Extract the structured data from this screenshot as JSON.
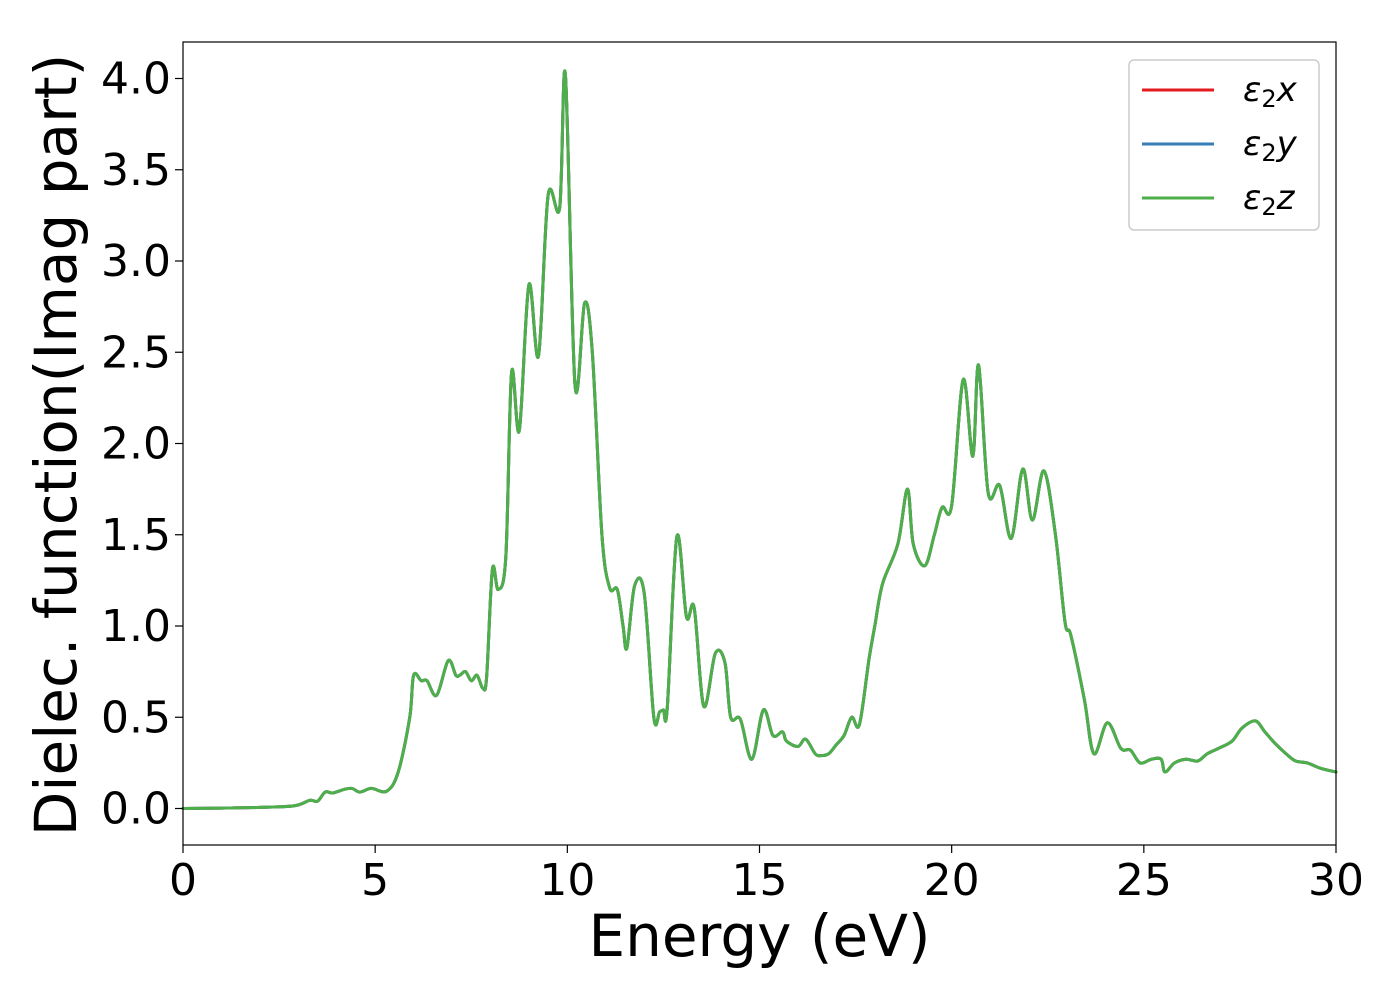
{
  "chart_data": {
    "type": "line",
    "title": "",
    "xlabel": "Energy (eV)",
    "ylabel": "Dielec. function(Imag part)",
    "xlim": [
      0,
      30
    ],
    "ylim": [
      -0.2,
      4.2
    ],
    "xticks": [
      0,
      5,
      10,
      15,
      20,
      25,
      30
    ],
    "xtick_labels": [
      "0",
      "5",
      "10",
      "15",
      "20",
      "25",
      "30"
    ],
    "yticks": [
      0.0,
      0.5,
      1.0,
      1.5,
      2.0,
      2.5,
      3.0,
      3.5,
      4.0
    ],
    "ytick_labels": [
      "0.0",
      "0.5",
      "1.0",
      "1.5",
      "2.0",
      "2.5",
      "3.0",
      "3.5",
      "4.0"
    ],
    "grid": false,
    "legend_position": "top-right",
    "series": [
      {
        "name": "ε2x",
        "base": "ε",
        "sub": "2",
        "var": "x",
        "color": "#e41a1c",
        "shares_data_with": "ε2z"
      },
      {
        "name": "ε2y",
        "base": "ε",
        "sub": "2",
        "var": "y",
        "color": "#377eb8",
        "shares_data_with": "ε2z"
      },
      {
        "name": "ε2z",
        "base": "ε",
        "sub": "2",
        "var": "z",
        "color": "#4daf4a"
      }
    ],
    "x": [
      0,
      1,
      2,
      2.9,
      3.3,
      3.5,
      3.7,
      3.9,
      4.2,
      4.4,
      4.6,
      4.9,
      5.3,
      5.6,
      5.9,
      6.0,
      6.2,
      6.35,
      6.6,
      6.9,
      7.1,
      7.2,
      7.35,
      7.5,
      7.65,
      7.8,
      7.9,
      8.05,
      8.2,
      8.4,
      8.55,
      8.75,
      9.0,
      9.25,
      9.5,
      9.8,
      9.95,
      10.2,
      10.45,
      10.65,
      10.9,
      11.1,
      11.3,
      11.45,
      11.55,
      11.75,
      12.0,
      12.25,
      12.4,
      12.5,
      12.6,
      12.85,
      13.1,
      13.3,
      13.55,
      13.85,
      14.1,
      14.25,
      14.5,
      14.8,
      15.1,
      15.35,
      15.6,
      15.7,
      16.0,
      16.2,
      16.45,
      16.6,
      16.8,
      17.0,
      17.2,
      17.4,
      17.6,
      17.85,
      18.0,
      18.2,
      18.6,
      18.85,
      19.0,
      19.3,
      19.55,
      19.75,
      20.0,
      20.3,
      20.55,
      20.7,
      20.95,
      21.25,
      21.55,
      21.85,
      22.1,
      22.4,
      22.7,
      22.95,
      23.1,
      23.45,
      23.7,
      24.05,
      24.4,
      24.65,
      24.9,
      25.2,
      25.45,
      25.55,
      25.8,
      26.1,
      26.4,
      26.65,
      26.95,
      27.3,
      27.55,
      27.9,
      28.15,
      28.4,
      28.7,
      28.95,
      29.25,
      29.6,
      30.0
    ],
    "values": [
      0.0,
      0.002,
      0.006,
      0.015,
      0.045,
      0.04,
      0.09,
      0.085,
      0.105,
      0.11,
      0.09,
      0.11,
      0.095,
      0.2,
      0.5,
      0.73,
      0.7,
      0.7,
      0.62,
      0.81,
      0.73,
      0.73,
      0.75,
      0.7,
      0.73,
      0.66,
      0.72,
      1.31,
      1.2,
      1.38,
      2.39,
      2.07,
      2.87,
      2.48,
      3.36,
      3.29,
      4.02,
      2.32,
      2.77,
      2.5,
      1.5,
      1.21,
      1.2,
      1.0,
      0.88,
      1.22,
      1.18,
      0.5,
      0.53,
      0.54,
      0.55,
      1.49,
      1.05,
      1.1,
      0.56,
      0.85,
      0.8,
      0.5,
      0.49,
      0.27,
      0.54,
      0.4,
      0.42,
      0.37,
      0.34,
      0.38,
      0.3,
      0.29,
      0.3,
      0.35,
      0.4,
      0.5,
      0.46,
      0.82,
      1.0,
      1.23,
      1.45,
      1.75,
      1.45,
      1.33,
      1.5,
      1.65,
      1.66,
      2.35,
      1.93,
      2.43,
      1.73,
      1.77,
      1.48,
      1.86,
      1.58,
      1.85,
      1.5,
      1.02,
      0.95,
      0.6,
      0.3,
      0.47,
      0.33,
      0.32,
      0.25,
      0.27,
      0.27,
      0.2,
      0.25,
      0.27,
      0.26,
      0.3,
      0.33,
      0.37,
      0.44,
      0.48,
      0.42,
      0.36,
      0.3,
      0.26,
      0.25,
      0.22,
      0.2
    ]
  }
}
